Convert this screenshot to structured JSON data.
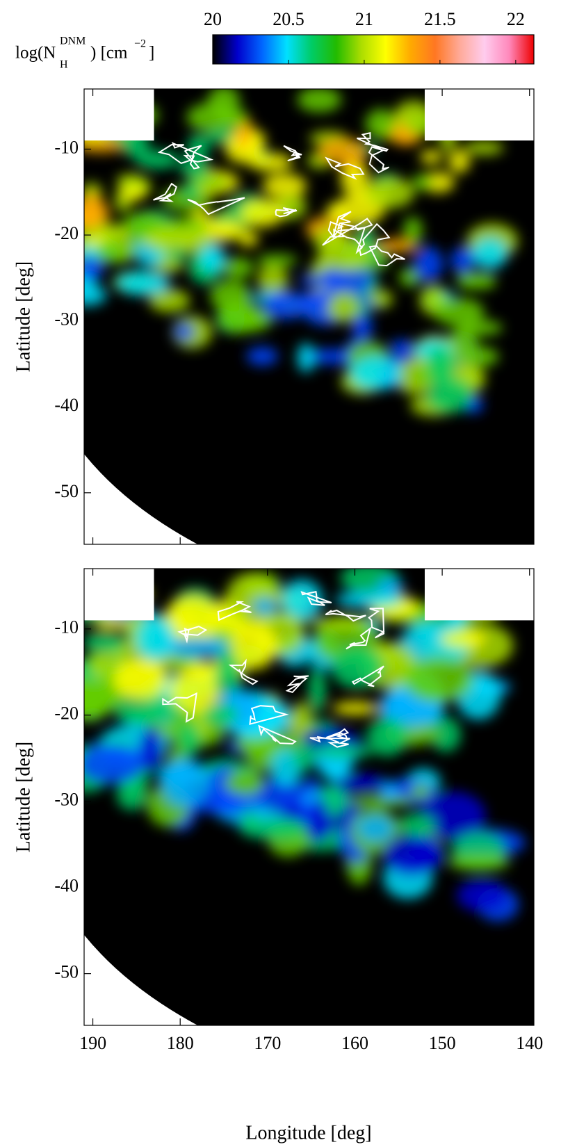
{
  "chart_data": {
    "type": "heatmap",
    "colorbar": {
      "label_parts": [
        "log(N",
        "DNM",
        "H",
        ") [cm",
        "−2",
        "]"
      ],
      "clim": [
        20,
        22.12
      ],
      "cticks": [
        20,
        20.5,
        21,
        21.5,
        22
      ],
      "colormap": [
        "#000000",
        "#0000cc",
        "#0066ff",
        "#00e0ff",
        "#00cc66",
        "#22bb00",
        "#aadd00",
        "#ffff00",
        "#ffaa00",
        "#ff7722",
        "#ffaa99",
        "#ffccee",
        "#ff88bb",
        "#ee0000"
      ]
    },
    "xlabel": "Longitude [deg]",
    "xlim": [
      191,
      139.5
    ],
    "xticks": [
      190,
      180,
      170,
      160,
      150,
      140
    ],
    "panels": [
      {
        "ylabel": "Latitude [deg]",
        "ylim": [
          -56,
          -3
        ],
        "yticks": [
          -10,
          -20,
          -30,
          -40,
          -50
        ]
      },
      {
        "ylabel": "Latitude [deg]",
        "ylim": [
          -56,
          -3
        ],
        "yticks": [
          -10,
          -20,
          -30,
          -40,
          -50
        ]
      }
    ]
  }
}
